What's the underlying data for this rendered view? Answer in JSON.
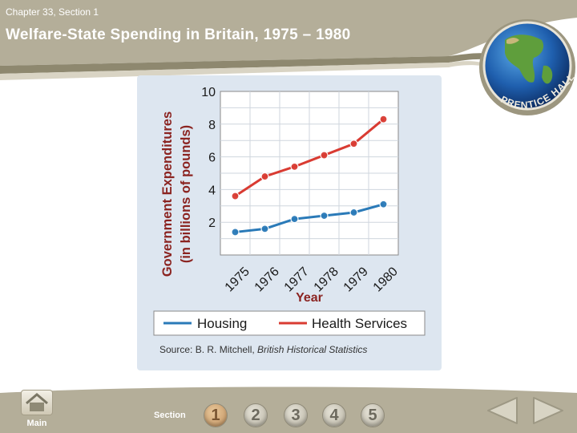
{
  "header": {
    "chapter": "Chapter 33, Section 1",
    "title": "Welfare-State Spending in Britain, 1975 – 1980"
  },
  "logo": {
    "text": "PRENTICE HALL"
  },
  "colors": {
    "housing": "#2a7ab8",
    "health": "#d93b32",
    "panel": "#dde6f0",
    "band": "#b4ae99"
  },
  "chart_data": {
    "type": "line",
    "x": [
      "1975",
      "1976",
      "1977",
      "1978",
      "1979",
      "1980"
    ],
    "series": [
      {
        "name": "Housing",
        "values": [
          1.4,
          1.6,
          2.2,
          2.4,
          2.6,
          3.1
        ]
      },
      {
        "name": "Health Services",
        "values": [
          3.6,
          4.8,
          5.4,
          6.1,
          6.8,
          8.3
        ]
      }
    ],
    "yticks": [
      "2",
      "4",
      "6",
      "8",
      "10"
    ],
    "ylim": [
      0,
      10
    ],
    "xlabel": "Year",
    "ylabel_line1": "Government Expenditures",
    "ylabel_line2": "(in billions of pounds)",
    "legend": [
      "Housing",
      "Health Services"
    ],
    "source_prefix": "Source: B. R. Mitchell, ",
    "source_title": "British Historical Statistics"
  },
  "footer": {
    "main_label": "Main",
    "section_label": "Section",
    "sections": [
      "1",
      "2",
      "3",
      "4",
      "5"
    ],
    "active_section": "1"
  }
}
